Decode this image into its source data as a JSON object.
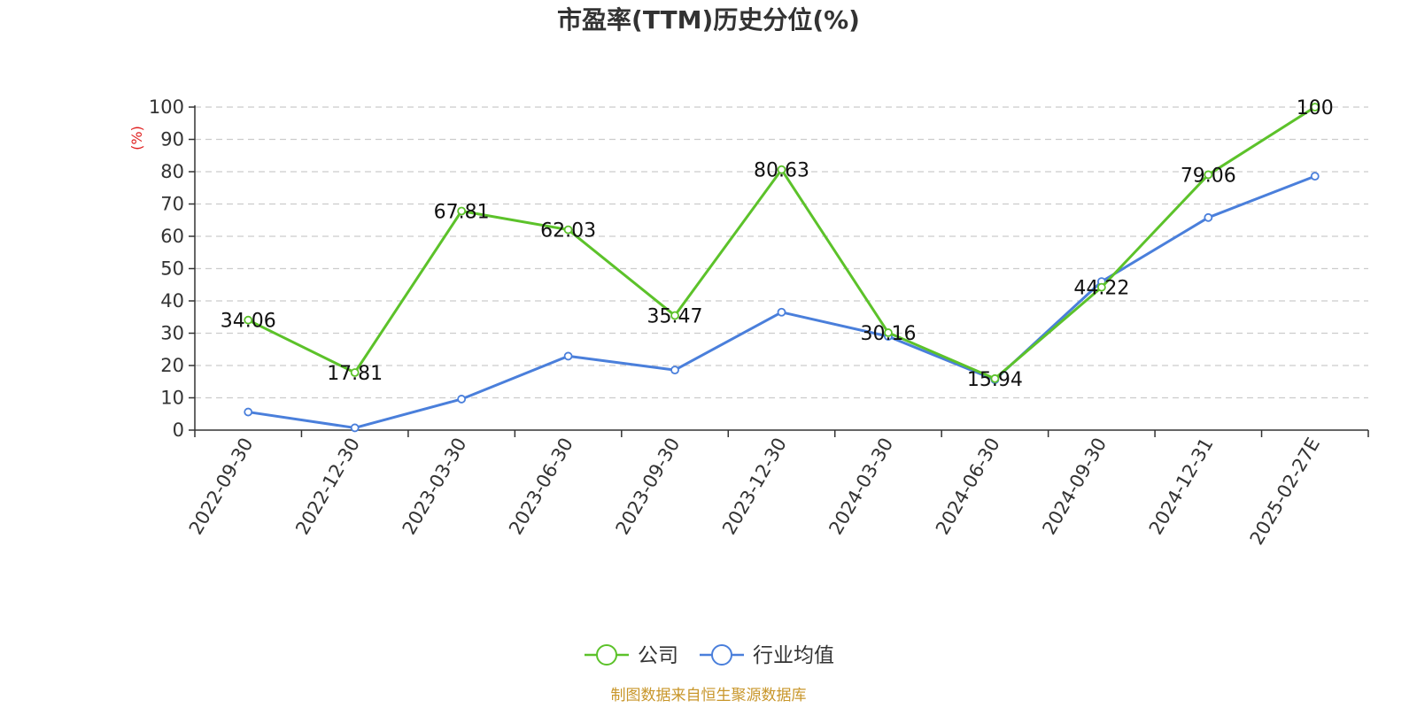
{
  "chart_data": {
    "type": "line",
    "title": "市盈率(TTM)历史分位(%)",
    "ylabel": "(%)",
    "ylim": [
      0,
      100
    ],
    "yticks": [
      0,
      10,
      20,
      30,
      40,
      50,
      60,
      70,
      80,
      90,
      100
    ],
    "grid": true,
    "legend_position": "bottom-center",
    "categories": [
      "2022-09-30",
      "2022-12-30",
      "2023-03-30",
      "2023-06-30",
      "2023-09-30",
      "2023-12-30",
      "2024-03-30",
      "2024-06-30",
      "2024-09-30",
      "2024-12-31",
      "2025-02-27E"
    ],
    "series": [
      {
        "name": "公司",
        "color": "#5cc22a",
        "values": [
          34.06,
          17.81,
          67.81,
          62.03,
          35.47,
          80.63,
          30.16,
          15.94,
          44.22,
          79.06,
          100
        ],
        "labels": [
          "34.06",
          "17.81",
          "67.81",
          "62.03",
          "35.47",
          "80.63",
          "30.16",
          "15.94",
          "44.22",
          "79.06",
          "100"
        ]
      },
      {
        "name": "行业均值",
        "color": "#4a7fdb",
        "values": [
          5.6,
          0.7,
          9.6,
          22.9,
          18.6,
          36.5,
          29.0,
          15.6,
          46.0,
          65.8,
          78.6
        ]
      }
    ]
  },
  "source": {
    "text": "制图数据来自恒生聚源数据库",
    "color": "#c8962a"
  },
  "colors": {
    "ylabel": "#e02020",
    "axis": "#333333",
    "grid": "#cccccc"
  }
}
